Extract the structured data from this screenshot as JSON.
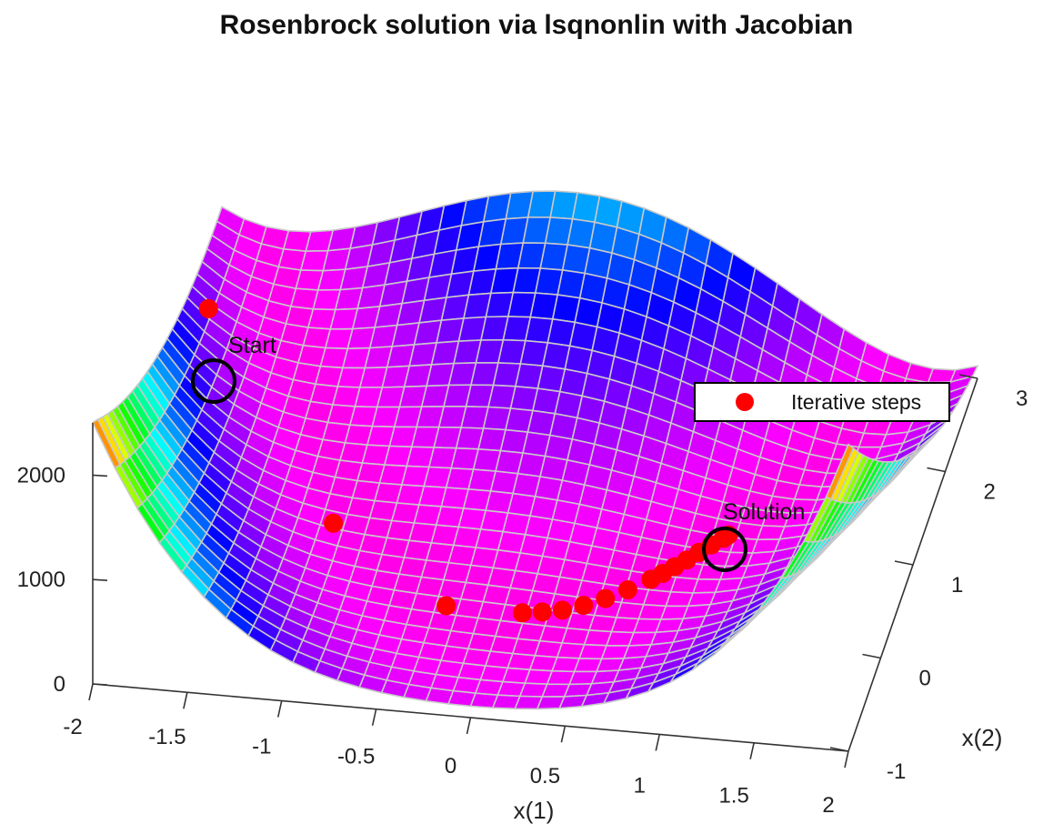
{
  "chart_data": {
    "type": "surface",
    "title": "Rosenbrock solution via lsqnonlin with Jacobian",
    "xlabel": "x(1)",
    "ylabel": "x(2)",
    "zlabel": "",
    "xlim": [
      -2,
      2
    ],
    "ylim": [
      -1,
      3
    ],
    "zlim": [
      0,
      2500
    ],
    "x_ticks": [
      "-2",
      "-1.5",
      "-1",
      "-0.5",
      "0",
      "0.5",
      "1",
      "1.5",
      "2"
    ],
    "y_ticks": [
      "-1",
      "0",
      "1",
      "2",
      "3"
    ],
    "z_ticks": [
      "0",
      "1000",
      "2000"
    ],
    "surface_function": "(1 - x1)^2 + 100*(x2 - x1^2)^2",
    "colormap": "hsv",
    "grid": "surface mesh lines only",
    "legend": {
      "placement": "right",
      "entries": [
        {
          "label": "Iterative steps",
          "color": "#ff0000",
          "marker": "filled circle"
        }
      ]
    },
    "series": [
      {
        "name": "Iterative steps",
        "x": [
          -1.9,
          -1.0,
          -0.3,
          0.1,
          0.2,
          0.3,
          0.4,
          0.5,
          0.6,
          0.7,
          0.75,
          0.8,
          0.85,
          0.9,
          0.95,
          1.0,
          1.02
        ],
        "y": [
          2.0,
          0.6,
          0.0,
          0.02,
          0.05,
          0.09,
          0.16,
          0.25,
          0.36,
          0.49,
          0.56,
          0.64,
          0.72,
          0.81,
          0.9,
          0.98,
          1.02
        ],
        "z": [
          280,
          5,
          2,
          1,
          0.7,
          0.5,
          0.4,
          0.3,
          0.2,
          0.1,
          0.07,
          0.05,
          0.03,
          0.02,
          0.01,
          0.0,
          0.0
        ]
      }
    ],
    "annotations": [
      {
        "text": "Start",
        "x": -1.9,
        "y": 2.0
      },
      {
        "text": "Solution",
        "x": 1.0,
        "y": 1.0
      }
    ]
  }
}
